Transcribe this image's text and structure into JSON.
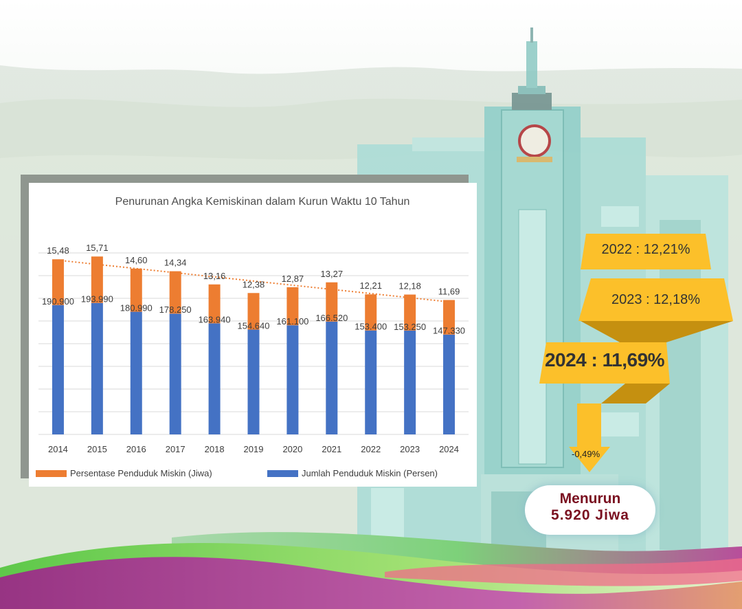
{
  "colors": {
    "percent_bar": "#ed7d31",
    "count_bar": "#4472c4",
    "trend_line": "#ed7d31",
    "banner_yellow": "#fcc02a",
    "banner_ribbon": "#c59010",
    "result_text": "#7a1020"
  },
  "chart_data": {
    "type": "bar",
    "title": "Penurunan Angka Kemiskinan dalam Kurun Waktu 10 Tahun",
    "categories": [
      "2014",
      "2015",
      "2016",
      "2017",
      "2018",
      "2019",
      "2020",
      "2021",
      "2022",
      "2023",
      "2024"
    ],
    "series": [
      {
        "name": "Persentase Penduduk Miskin (Jiwa)",
        "values": [
          15.48,
          15.71,
          14.6,
          14.34,
          13.16,
          12.38,
          12.87,
          13.27,
          12.21,
          12.18,
          11.69
        ],
        "labels": [
          "15,48",
          "15,71",
          "14,60",
          "14,34",
          "13,16",
          "12,38",
          "12,87",
          "13,27",
          "12,21",
          "12,18",
          "11,69"
        ]
      },
      {
        "name": "Jumlah Penduduk Miskin (Persen)",
        "values": [
          190900,
          193990,
          180990,
          178250,
          163940,
          154640,
          161100,
          166520,
          153400,
          153250,
          147330
        ],
        "labels": [
          "190.900",
          "193.990",
          "180.990",
          "178.250",
          "163.940",
          "154.640",
          "161.100",
          "166.520",
          "153.400",
          "153.250",
          "147.330"
        ]
      }
    ],
    "trendline": true,
    "grid": "horizontal",
    "legend_position": "bottom"
  },
  "callouts": {
    "y2022": "2022 : 12,21%",
    "y2023": "2023 : 12,18%",
    "y2024": "2024 : 11,69%",
    "delta": "-0,49%",
    "result_line1": "Menurun",
    "result_line2": "5.920 Jiwa"
  }
}
